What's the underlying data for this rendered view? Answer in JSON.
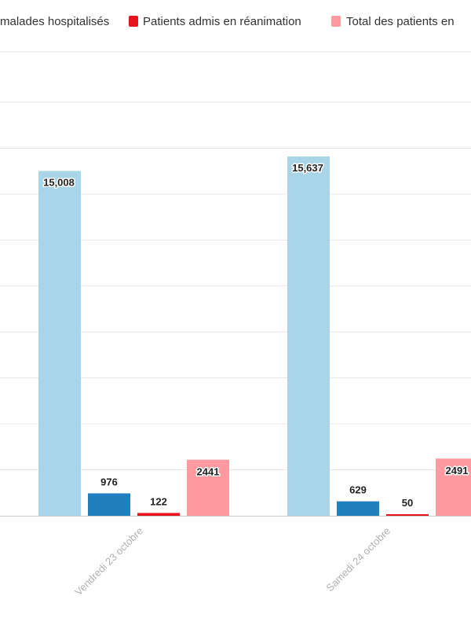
{
  "chart_data": {
    "type": "bar",
    "categories": [
      "Vendredi 23 octobre",
      "Samedi 24 octobre"
    ],
    "series": [
      {
        "name": "Nombre total de malades hospitalisés",
        "values": [
          15008,
          15637
        ],
        "labels": [
          "15,008",
          "15,637"
        ],
        "color": "#a8d5e8"
      },
      {
        "name": "",
        "values": [
          976,
          629
        ],
        "labels": [
          "976",
          "629"
        ],
        "color": "#1f7fbf"
      },
      {
        "name": "Patients admis en réanimation",
        "values": [
          122,
          50
        ],
        "labels": [
          "122",
          "50"
        ],
        "color": "#e8141b"
      },
      {
        "name": "Total des patients en",
        "values": [
          2441,
          2491
        ],
        "labels": [
          "2441",
          "2491"
        ],
        "color": "#ff9aa0"
      }
    ],
    "legend": [
      {
        "text": "malades hospitalisés",
        "series": 0
      },
      {
        "text": "Patients admis en réanimation",
        "series": 2
      },
      {
        "text": "Total des patients en",
        "series": 3
      }
    ],
    "ylim": [
      0,
      18000
    ],
    "grid": true,
    "legend_position": "top"
  }
}
